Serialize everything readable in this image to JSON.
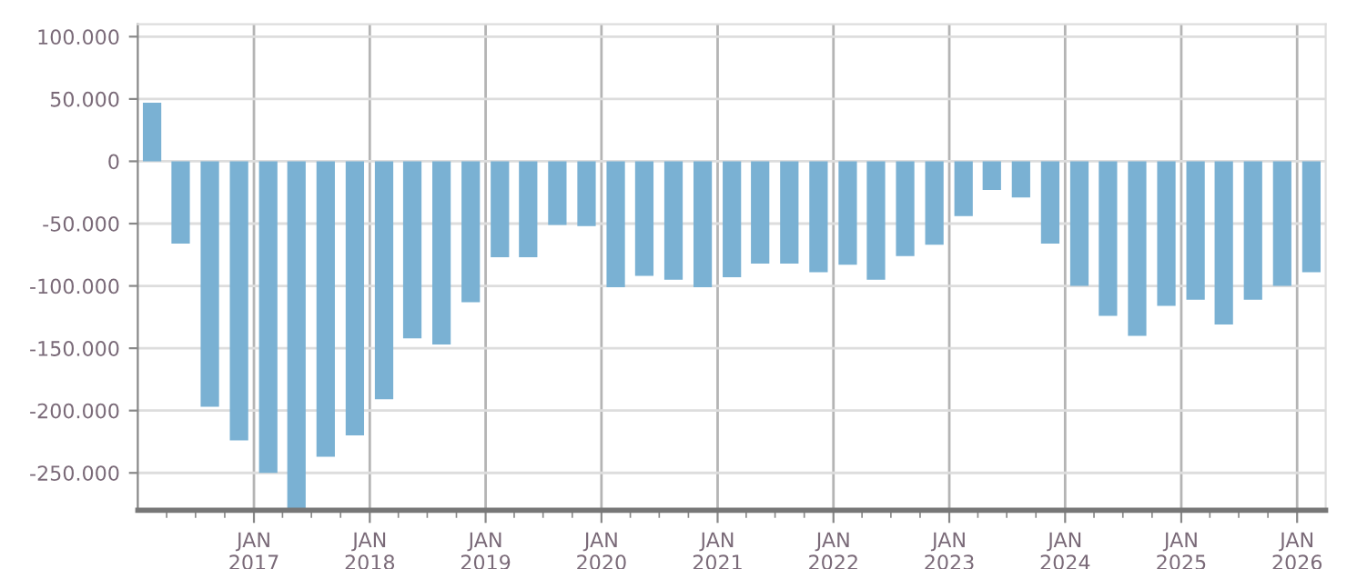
{
  "chart_data": {
    "type": "bar",
    "color": "#7ab1d3",
    "grid": true,
    "x": [
      "2016-02-15",
      "2016-05-15",
      "2016-08-15",
      "2016-11-15",
      "2017-02-15",
      "2017-05-15",
      "2017-08-15",
      "2017-11-15",
      "2018-02-15",
      "2018-05-15",
      "2018-08-15",
      "2018-11-15",
      "2019-02-15",
      "2019-05-15",
      "2019-08-15",
      "2019-11-15",
      "2020-02-15",
      "2020-05-15",
      "2020-08-15",
      "2020-11-15",
      "2021-02-15",
      "2021-05-15",
      "2021-08-15",
      "2021-11-15",
      "2022-02-15",
      "2022-05-15",
      "2022-08-15",
      "2022-11-15",
      "2023-02-15",
      "2023-05-15",
      "2023-08-15",
      "2023-11-15",
      "2024-02-15",
      "2024-05-15",
      "2024-08-15",
      "2024-11-15",
      "2025-02-15",
      "2025-05-15",
      "2025-08-15",
      "2025-11-15",
      "2026-02-15"
    ],
    "values": [
      47000,
      -66000,
      -197000,
      -224000,
      -250000,
      -280000,
      -237000,
      -220000,
      -191000,
      -142000,
      -147000,
      -113000,
      -77000,
      -77000,
      -51000,
      -52000,
      -101000,
      -92000,
      -95000,
      -101000,
      -93000,
      -82000,
      -82000,
      -89000,
      -83000,
      -95000,
      -76000,
      -67000,
      -44000,
      -23000,
      -29000,
      -66000,
      -100000,
      -124000,
      -140000,
      -116000,
      -111000,
      -131000,
      -111000,
      -100000,
      -89000
    ],
    "xlim": [
      "2016-01-01",
      "2026-04-01"
    ],
    "xticks": [
      {
        "value": "2016-04-01",
        "label": null
      },
      {
        "value": "2016-07-01",
        "label": null
      },
      {
        "value": "2016-10-01",
        "label": null
      },
      {
        "value": "2017-01-01",
        "label": "JAN\n2017"
      },
      {
        "value": "2017-04-01",
        "label": null
      },
      {
        "value": "2017-07-01",
        "label": null
      },
      {
        "value": "2017-10-01",
        "label": null
      },
      {
        "value": "2018-01-01",
        "label": "JAN\n2018"
      },
      {
        "value": "2018-04-01",
        "label": null
      },
      {
        "value": "2018-07-01",
        "label": null
      },
      {
        "value": "2018-10-01",
        "label": null
      },
      {
        "value": "2019-01-01",
        "label": "JAN\n2019"
      },
      {
        "value": "2019-04-01",
        "label": null
      },
      {
        "value": "2019-07-01",
        "label": null
      },
      {
        "value": "2019-10-01",
        "label": null
      },
      {
        "value": "2020-01-01",
        "label": "JAN\n2020"
      },
      {
        "value": "2020-04-01",
        "label": null
      },
      {
        "value": "2020-07-01",
        "label": null
      },
      {
        "value": "2020-10-01",
        "label": null
      },
      {
        "value": "2021-01-01",
        "label": "JAN\n2021"
      },
      {
        "value": "2021-04-01",
        "label": null
      },
      {
        "value": "2021-07-01",
        "label": null
      },
      {
        "value": "2021-10-01",
        "label": null
      },
      {
        "value": "2022-01-01",
        "label": "JAN\n2022"
      },
      {
        "value": "2022-04-01",
        "label": null
      },
      {
        "value": "2022-07-01",
        "label": null
      },
      {
        "value": "2022-10-01",
        "label": null
      },
      {
        "value": "2023-01-01",
        "label": "JAN\n2023"
      },
      {
        "value": "2023-04-01",
        "label": null
      },
      {
        "value": "2023-07-01",
        "label": null
      },
      {
        "value": "2023-10-01",
        "label": null
      },
      {
        "value": "2024-01-01",
        "label": "JAN\n2024"
      },
      {
        "value": "2024-04-01",
        "label": null
      },
      {
        "value": "2024-07-01",
        "label": null
      },
      {
        "value": "2024-10-01",
        "label": null
      },
      {
        "value": "2025-01-01",
        "label": "JAN\n2025"
      },
      {
        "value": "2025-04-01",
        "label": null
      },
      {
        "value": "2025-07-01",
        "label": null
      },
      {
        "value": "2025-10-01",
        "label": null
      },
      {
        "value": "2026-01-01",
        "label": "JAN\n2026"
      }
    ],
    "ylim": [
      -280000,
      110000
    ],
    "yticks": [
      {
        "value": -250000,
        "label": "-250.000"
      },
      {
        "value": -200000,
        "label": "-200.000"
      },
      {
        "value": -150000,
        "label": "-150.000"
      },
      {
        "value": -100000,
        "label": "-100.000"
      },
      {
        "value": -50000,
        "label": "-50.000"
      },
      0,
      {
        "value": 50000,
        "label": "50.000"
      },
      {
        "value": 100000,
        "label": "100.000"
      }
    ]
  }
}
